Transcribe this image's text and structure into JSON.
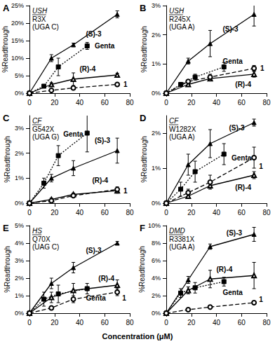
{
  "xlabel": "Concentration (μM)",
  "chart_data": [
    {
      "type": "line",
      "panel": "A",
      "gene": "USH",
      "mutation": "R3X",
      "context": "(UGA C)",
      "ylabel": "%Readthrough",
      "xlim": [
        0,
        80
      ],
      "xticks": [
        0,
        20,
        40,
        60,
        80
      ],
      "ylim": [
        0,
        25
      ],
      "yticks": [
        {
          "value": 0,
          "label": "0%"
        },
        {
          "value": 5,
          "label": "5%"
        },
        {
          "value": 10,
          "label": "10%"
        },
        {
          "value": 15,
          "label": "15%"
        },
        {
          "value": 20,
          "label": "20%"
        },
        {
          "value": 25,
          "label": "25%"
        }
      ],
      "grid": false,
      "series": [
        {
          "name": "(S)-3",
          "color": "#000000",
          "marker": "triangle",
          "line_style": "solid",
          "x": [
            0,
            17.5,
            35,
            70
          ],
          "values": [
            0,
            10,
            13.8,
            22.5
          ],
          "errors": [
            0,
            1,
            0.5,
            1
          ],
          "label_at": [
            45,
            17
          ]
        },
        {
          "name": "Genta",
          "color": "#000000",
          "marker": "square",
          "line_style": "dotted",
          "x": [
            0,
            11.5,
            23,
            46
          ],
          "values": [
            0,
            2,
            7.5,
            13.5
          ],
          "errors": [
            0,
            0.3,
            2.5,
            1
          ],
          "label_at": [
            52,
            13.5
          ]
        },
        {
          "name": "(R)-4",
          "color": "#000000",
          "marker": "triangle-open",
          "line_style": "solid",
          "x": [
            0,
            17.5,
            35,
            70
          ],
          "values": [
            0,
            2.5,
            4,
            5.2
          ],
          "errors": [
            0,
            0.5,
            1.8,
            0.5
          ],
          "label_at": [
            40,
            7
          ]
        },
        {
          "name": "1",
          "color": "#000000",
          "marker": "circle-open",
          "line_style": "dashed",
          "x": [
            0,
            17.5,
            35,
            70
          ],
          "values": [
            0,
            0.8,
            1.5,
            2.5
          ],
          "errors": [
            0,
            0.2,
            0.3,
            0.4
          ],
          "label_at": [
            75,
            2.5
          ]
        }
      ]
    },
    {
      "type": "line",
      "panel": "B",
      "gene": "USH",
      "mutation": "R245X",
      "context": "(UGA A)",
      "ylabel": "%Readthrough",
      "xlim": [
        0,
        80
      ],
      "xticks": [
        0,
        20,
        40,
        60,
        80
      ],
      "ylim": [
        0,
        3
      ],
      "yticks": [
        {
          "value": 0,
          "label": "0%"
        },
        {
          "value": 1,
          "label": "1%"
        },
        {
          "value": 2,
          "label": "2%"
        },
        {
          "value": 3,
          "label": "3%"
        }
      ],
      "grid": false,
      "series": [
        {
          "name": "(S)-3",
          "color": "#000000",
          "marker": "triangle",
          "line_style": "solid",
          "x": [
            0,
            17.5,
            35,
            70
          ],
          "values": [
            0,
            1.1,
            1.7,
            2.7
          ],
          "errors": [
            0,
            0.1,
            0.45,
            0.4
          ],
          "label_at": [
            45,
            2.2
          ]
        },
        {
          "name": "Genta",
          "color": "#000000",
          "marker": "square",
          "line_style": "dotted",
          "x": [
            0,
            11.5,
            23,
            46
          ],
          "values": [
            0,
            0.3,
            0.55,
            0.9
          ],
          "errors": [
            0,
            0.05,
            0.1,
            0.15
          ],
          "label_at": [
            45,
            1.1
          ]
        },
        {
          "name": "(R)-4",
          "color": "#000000",
          "marker": "triangle-open",
          "line_style": "solid",
          "x": [
            0,
            17.5,
            35,
            70
          ],
          "values": [
            0,
            0.3,
            0.5,
            0.65
          ],
          "errors": [
            0,
            0.05,
            0.05,
            0.1
          ],
          "label_at": [
            55,
            0.3
          ]
        },
        {
          "name": "1",
          "color": "#000000",
          "marker": "circle-open",
          "line_style": "dashed",
          "x": [
            0,
            17.5,
            35,
            70
          ],
          "values": [
            0,
            0.4,
            0.55,
            0.85
          ],
          "errors": [
            0,
            0.05,
            0.1,
            0.1
          ],
          "label_at": [
            75,
            0.85
          ]
        }
      ]
    },
    {
      "type": "line",
      "panel": "C",
      "gene": "CF",
      "mutation": "G542X",
      "context": "(UGA G)",
      "ylabel": "%Readthrough",
      "xlim": [
        0,
        80
      ],
      "xticks": [
        0,
        20,
        40,
        60,
        80
      ],
      "ylim": [
        0,
        3.5
      ],
      "yticks": [
        {
          "value": 0,
          "label": "0%"
        },
        {
          "value": 1,
          "label": "1%"
        },
        {
          "value": 2,
          "label": "2%"
        },
        {
          "value": 3,
          "label": "3%"
        }
      ],
      "grid": false,
      "series": [
        {
          "name": "(S)-3",
          "color": "#000000",
          "marker": "triangle",
          "line_style": "solid",
          "x": [
            0,
            17.5,
            35,
            70
          ],
          "values": [
            0,
            1,
            1.4,
            2.1
          ],
          "errors": [
            0,
            0.15,
            0.3,
            0.5
          ],
          "label_at": [
            52,
            2.5
          ]
        },
        {
          "name": "Genta",
          "color": "#000000",
          "marker": "square",
          "line_style": "dotted",
          "x": [
            0,
            11.5,
            23,
            46
          ],
          "values": [
            0,
            0.8,
            1.9,
            2.8
          ],
          "errors": [
            0,
            0.2,
            0.4,
            0.75
          ],
          "label_at": [
            27,
            2.75
          ]
        },
        {
          "name": "(R)-4",
          "color": "#000000",
          "marker": "triangle-open",
          "line_style": "solid",
          "x": [
            0,
            17.5,
            35,
            70
          ],
          "values": [
            0,
            0.15,
            0.35,
            0.5
          ],
          "errors": [
            0,
            0.05,
            0.05,
            0.1
          ],
          "label_at": [
            50,
            0.9
          ]
        },
        {
          "name": "1",
          "color": "#000000",
          "marker": "circle-open",
          "line_style": "dashed",
          "x": [
            0,
            17.5,
            35,
            70
          ],
          "values": [
            0,
            0.1,
            0.3,
            0.55
          ],
          "errors": [
            0,
            0.05,
            0.05,
            0.1
          ],
          "label_at": [
            75,
            0.5
          ]
        }
      ]
    },
    {
      "type": "line",
      "panel": "D",
      "gene": "CF",
      "mutation": "W1282X",
      "context": "(UGA A)",
      "ylabel": "%Readthrough",
      "xlim": [
        0,
        80
      ],
      "xticks": [
        0,
        20,
        40,
        60,
        80
      ],
      "ylim": [
        0,
        2.5
      ],
      "yticks": [
        {
          "value": 0,
          "label": "0%"
        },
        {
          "value": 1,
          "label": "1%"
        },
        {
          "value": 2,
          "label": "2%"
        }
      ],
      "grid": false,
      "series": [
        {
          "name": "(S)-3",
          "color": "#000000",
          "marker": "triangle",
          "line_style": "solid",
          "x": [
            0,
            17.5,
            35,
            70
          ],
          "values": [
            0,
            1.1,
            1.7,
            2.3
          ],
          "errors": [
            0,
            0.3,
            0.4,
            0.1
          ],
          "label_at": [
            50,
            2.15
          ]
        },
        {
          "name": "Genta",
          "color": "#000000",
          "marker": "square",
          "line_style": "dotted",
          "x": [
            0,
            11.5,
            23,
            46
          ],
          "values": [
            0,
            0.4,
            0.9,
            1.4
          ],
          "errors": [
            0,
            0.2,
            0.3,
            0.3
          ],
          "label_at": [
            52,
            1.3
          ]
        },
        {
          "name": "(R)-4",
          "color": "#000000",
          "marker": "triangle-open",
          "line_style": "solid",
          "x": [
            0,
            17.5,
            35,
            70
          ],
          "values": [
            0,
            0.2,
            0.5,
            0.8
          ],
          "errors": [
            0,
            0.05,
            0.05,
            0.1
          ],
          "label_at": [
            55,
            0.45
          ]
        },
        {
          "name": "1",
          "color": "#000000",
          "marker": "circle-open",
          "line_style": "dashed",
          "x": [
            0,
            17.5,
            35,
            70
          ],
          "values": [
            0,
            0.3,
            0.6,
            1.3
          ],
          "errors": [
            0,
            0.1,
            0.2,
            0.3
          ],
          "label_at": [
            74,
            1.05
          ]
        }
      ]
    },
    {
      "type": "line",
      "panel": "E",
      "gene": "HS",
      "mutation": "Q70X",
      "context": "(UAG C)",
      "ylabel": "%Readthrough",
      "xlim": [
        0,
        80
      ],
      "xticks": [
        0,
        20,
        40,
        60,
        80
      ],
      "ylim": [
        0,
        5
      ],
      "yticks": [
        {
          "value": 0,
          "label": "0%"
        },
        {
          "value": 1,
          "label": "1%"
        },
        {
          "value": 2,
          "label": "2%"
        },
        {
          "value": 3,
          "label": "3%"
        },
        {
          "value": 4,
          "label": "4%"
        },
        {
          "value": 5,
          "label": "5%"
        }
      ],
      "grid": false,
      "series": [
        {
          "name": "(S)-3",
          "color": "#000000",
          "marker": "triangle",
          "line_style": "solid",
          "x": [
            0,
            17.5,
            35,
            70
          ],
          "values": [
            0,
            1.7,
            2.6,
            4
          ],
          "errors": [
            0,
            0.3,
            0.3,
            0.1
          ],
          "label_at": [
            45,
            3.6
          ]
        },
        {
          "name": "Genta",
          "color": "#000000",
          "marker": "square",
          "line_style": "dotted",
          "x": [
            0,
            11.5,
            23,
            46
          ],
          "values": [
            0,
            0.8,
            1.1,
            1.4
          ],
          "errors": [
            0,
            0.4,
            0.5,
            0.3
          ],
          "label_at": [
            45,
            0.85
          ]
        },
        {
          "name": "(R)-4",
          "color": "#000000",
          "marker": "triangle-open",
          "line_style": "solid",
          "x": [
            0,
            17.5,
            35,
            70
          ],
          "values": [
            0,
            0.9,
            1.3,
            1.6
          ],
          "errors": [
            0,
            0.3,
            0.4,
            0.3
          ],
          "label_at": [
            55,
            2
          ]
        },
        {
          "name": "1",
          "color": "#000000",
          "marker": "circle-open",
          "line_style": "dashed",
          "x": [
            0,
            17.5,
            35,
            70
          ],
          "values": [
            0,
            0.3,
            0.8,
            1.2
          ],
          "errors": [
            0,
            0.1,
            0.2,
            0.2
          ],
          "label_at": [
            74,
            0.85
          ]
        }
      ]
    },
    {
      "type": "line",
      "panel": "F",
      "gene": "DMD",
      "mutation": "R3381X",
      "context": "(UGA A)",
      "ylabel": "%Readthrough",
      "xlim": [
        0,
        80
      ],
      "xticks": [
        0,
        20,
        40,
        60,
        80
      ],
      "ylim": [
        0,
        10
      ],
      "yticks": [
        {
          "value": 0,
          "label": "0%"
        },
        {
          "value": 2,
          "label": "2%"
        },
        {
          "value": 4,
          "label": "4%"
        },
        {
          "value": 6,
          "label": "6%"
        },
        {
          "value": 8,
          "label": "8%"
        },
        {
          "value": 10,
          "label": "10%"
        }
      ],
      "grid": false,
      "series": [
        {
          "name": "(S)-3",
          "color": "#000000",
          "marker": "triangle",
          "line_style": "solid",
          "x": [
            0,
            17.5,
            35,
            70
          ],
          "values": [
            0,
            3.8,
            7.6,
            9
          ],
          "errors": [
            0,
            0.4,
            0.3,
            0.8
          ],
          "label_at": [
            48,
            9.2
          ]
        },
        {
          "name": "Genta",
          "color": "#000000",
          "marker": "square",
          "line_style": "dotted",
          "x": [
            0,
            11.5,
            23,
            46
          ],
          "values": [
            0,
            2.3,
            2.9,
            3.6
          ],
          "errors": [
            0,
            0.5,
            0.6,
            0.5
          ],
          "label_at": [
            45,
            2.4
          ]
        },
        {
          "name": "(R)-4",
          "color": "#000000",
          "marker": "triangle-open",
          "line_style": "solid",
          "x": [
            0,
            17.5,
            35,
            70
          ],
          "values": [
            0,
            2.6,
            3.9,
            4.3
          ],
          "errors": [
            0,
            0.4,
            1,
            1.5
          ],
          "label_at": [
            40,
            5
          ]
        },
        {
          "name": "1",
          "color": "#000000",
          "marker": "circle-open",
          "line_style": "dashed",
          "x": [
            0,
            17.5,
            35,
            70
          ],
          "values": [
            0,
            0.4,
            0.7,
            1.2
          ],
          "errors": [
            0,
            0.1,
            0.1,
            0.2
          ],
          "label_at": [
            74,
            1.6
          ]
        }
      ]
    }
  ]
}
